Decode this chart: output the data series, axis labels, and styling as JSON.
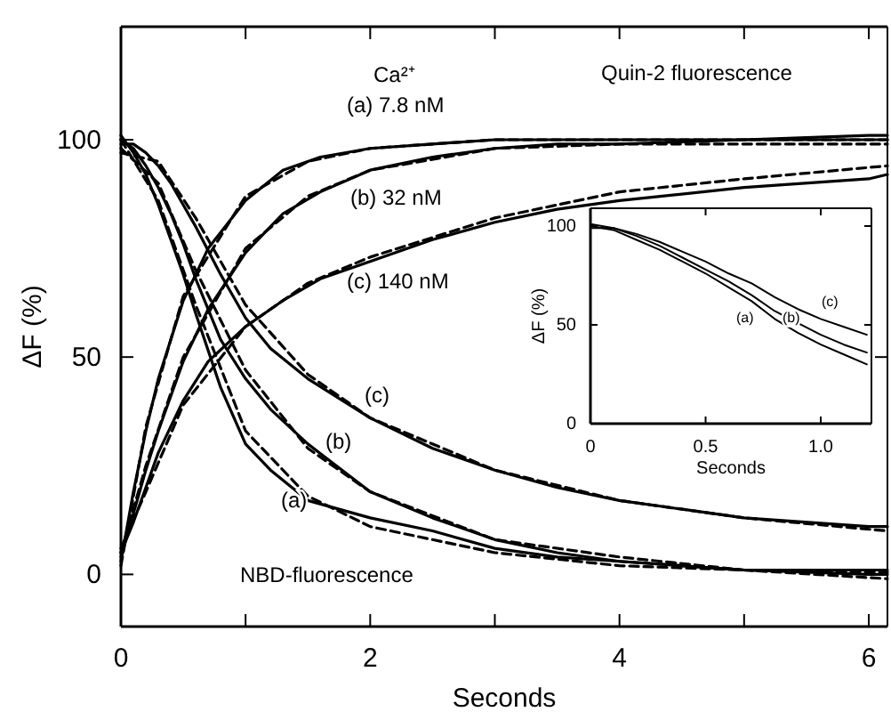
{
  "chart_data": [
    {
      "type": "line",
      "xlabel": "Seconds",
      "ylabel": "ΔF (%)",
      "xlim": [
        0,
        6.15
      ],
      "ylim": [
        -12,
        126
      ],
      "xticks": [
        0,
        {
          "value": 1,
          "label": null
        },
        2,
        {
          "value": 3,
          "label": null
        },
        4,
        {
          "value": 5,
          "label": null
        },
        6
      ],
      "yticks": [
        0,
        50,
        100
      ],
      "series": [
        {
          "name": "(a) 7.8 nM",
          "color": "#000000",
          "line_style": "solid",
          "x": [
            0,
            0.1,
            0.2,
            0.3,
            0.5,
            0.7,
            1,
            1.3,
            1.6,
            2,
            2.5,
            3,
            3.5,
            4,
            5,
            6,
            6.15
          ],
          "values": [
            3,
            19,
            33,
            45,
            63,
            75,
            86,
            93,
            96,
            98,
            99,
            100,
            100,
            100,
            100,
            101,
            101
          ]
        },
        {
          "name": "(b) 32 nM",
          "color": "#000000",
          "line_style": "solid",
          "x": [
            0,
            0.1,
            0.2,
            0.3,
            0.5,
            0.7,
            1,
            1.3,
            1.6,
            2,
            2.5,
            3,
            3.5,
            4,
            5,
            6,
            6.15
          ],
          "values": [
            4,
            14,
            24,
            33,
            49,
            61,
            74,
            83,
            88,
            93,
            96,
            98,
            99,
            99,
            100,
            100,
            100
          ]
        },
        {
          "name": "(c) 140 nM",
          "color": "#000000",
          "line_style": "solid",
          "x": [
            0,
            0.1,
            0.2,
            0.3,
            0.5,
            0.7,
            1,
            1.3,
            1.6,
            2,
            2.5,
            3,
            3.5,
            4,
            5,
            6,
            6.15
          ],
          "values": [
            5,
            12,
            20,
            28,
            40,
            49,
            57,
            63,
            68,
            72,
            77,
            81,
            84,
            86,
            89,
            91,
            92
          ]
        },
        {
          "color": "#000000",
          "line_style": "dashed",
          "x": [
            0,
            0.2,
            0.5,
            1,
            1.5,
            2,
            3,
            4,
            5,
            6.15
          ],
          "values": [
            2,
            34,
            64,
            87,
            95,
            98,
            100,
            100,
            100,
            100
          ]
        },
        {
          "color": "#000000",
          "line_style": "dashed",
          "x": [
            0,
            0.2,
            0.5,
            1,
            1.5,
            2,
            3,
            4,
            5,
            6.15
          ],
          "values": [
            5,
            25,
            50,
            75,
            87,
            93,
            98,
            99,
            99,
            99
          ]
        },
        {
          "color": "#000000",
          "line_style": "dashed",
          "x": [
            0,
            0.2,
            0.5,
            1,
            1.5,
            2,
            3,
            4,
            5,
            6.15
          ],
          "values": [
            6,
            19,
            39,
            57,
            67,
            73,
            82,
            88,
            91,
            94
          ]
        },
        {
          "name": "(a)",
          "color": "#000000",
          "line_style": "solid",
          "x": [
            0,
            0.1,
            0.2,
            0.3,
            0.4,
            0.5,
            0.6,
            0.8,
            1,
            1.2,
            1.5,
            2,
            2.5,
            3,
            3.5,
            4,
            5,
            6,
            6.15
          ],
          "values": [
            101,
            97,
            92,
            85,
            77,
            69,
            60,
            43,
            30,
            24,
            17,
            13,
            10,
            6,
            4,
            3,
            1,
            0,
            0
          ]
        },
        {
          "name": "(b)",
          "color": "#000000",
          "line_style": "solid",
          "x": [
            0,
            0.1,
            0.2,
            0.3,
            0.4,
            0.5,
            0.6,
            0.8,
            1,
            1.2,
            1.5,
            2,
            2.5,
            3,
            3.5,
            4,
            5,
            6,
            6.15
          ],
          "values": [
            100,
            98,
            94,
            89,
            83,
            76,
            68,
            54,
            45,
            38,
            30,
            19,
            13,
            8,
            5,
            3,
            1,
            1,
            1
          ]
        },
        {
          "name": "(c)",
          "color": "#000000",
          "line_style": "solid",
          "x": [
            0,
            0.1,
            0.2,
            0.3,
            0.4,
            0.5,
            0.6,
            0.8,
            1,
            1.2,
            1.5,
            2,
            2.5,
            3,
            3.5,
            4,
            5,
            6,
            6.15
          ],
          "values": [
            99,
            99,
            97,
            94,
            90,
            85,
            80,
            69,
            59,
            52,
            45,
            36,
            29,
            24,
            20,
            17,
            13,
            11,
            11
          ]
        },
        {
          "color": "#000000",
          "line_style": "dashed",
          "x": [
            0,
            0.3,
            0.6,
            1,
            1.5,
            2,
            3,
            4,
            5,
            6.15
          ],
          "values": [
            100,
            86,
            62,
            33,
            18,
            11,
            5,
            2,
            1,
            -1
          ]
        },
        {
          "color": "#000000",
          "line_style": "dashed",
          "x": [
            0,
            0.3,
            0.6,
            1,
            1.5,
            2,
            3,
            4,
            5,
            6.15
          ],
          "values": [
            98,
            90,
            70,
            47,
            29,
            19,
            8,
            4,
            1,
            0.5
          ]
        },
        {
          "color": "#000000",
          "line_style": "dashed",
          "x": [
            0,
            0.3,
            0.6,
            1,
            1.5,
            2,
            3,
            4,
            5,
            6.15
          ],
          "values": [
            97,
            95,
            82,
            62,
            46,
            36,
            24,
            17,
            13,
            10
          ]
        }
      ],
      "annotations": [
        "Ca²⁺",
        "Quin-2 fluorescence",
        "NBD-fluorescence"
      ]
    },
    {
      "type": "line",
      "xlabel": "Seconds",
      "ylabel": "ΔF (%)",
      "xlim": [
        0,
        1.22
      ],
      "ylim": [
        0,
        109
      ],
      "xticks": [
        0,
        0.5,
        {
          "value": 1,
          "label": "1.0"
        }
      ],
      "yticks": [
        0,
        50,
        100
      ],
      "series": [
        {
          "name": "(a)",
          "color": "#000000",
          "line_style": "solid",
          "x": [
            0,
            0.1,
            0.2,
            0.3,
            0.4,
            0.5,
            0.6,
            0.7,
            0.8,
            0.9,
            1,
            1.1,
            1.2
          ],
          "values": [
            100,
            98,
            93,
            88,
            82,
            76,
            69,
            62,
            53,
            46,
            40,
            35,
            30
          ]
        },
        {
          "name": "(b)",
          "color": "#000000",
          "line_style": "solid",
          "x": [
            0,
            0.1,
            0.2,
            0.3,
            0.4,
            0.5,
            0.6,
            0.7,
            0.8,
            0.9,
            1,
            1.1,
            1.2
          ],
          "values": [
            101,
            99,
            95,
            90,
            84,
            78,
            72,
            65,
            57,
            51,
            45,
            40,
            36
          ]
        },
        {
          "name": "(c)",
          "color": "#000000",
          "line_style": "solid",
          "x": [
            0,
            0.1,
            0.2,
            0.3,
            0.4,
            0.5,
            0.6,
            0.7,
            0.8,
            0.9,
            1,
            1.1,
            1.2
          ],
          "values": [
            99,
            99,
            96,
            92,
            87,
            82,
            76,
            71,
            64,
            58,
            53,
            49,
            45
          ]
        }
      ]
    }
  ]
}
